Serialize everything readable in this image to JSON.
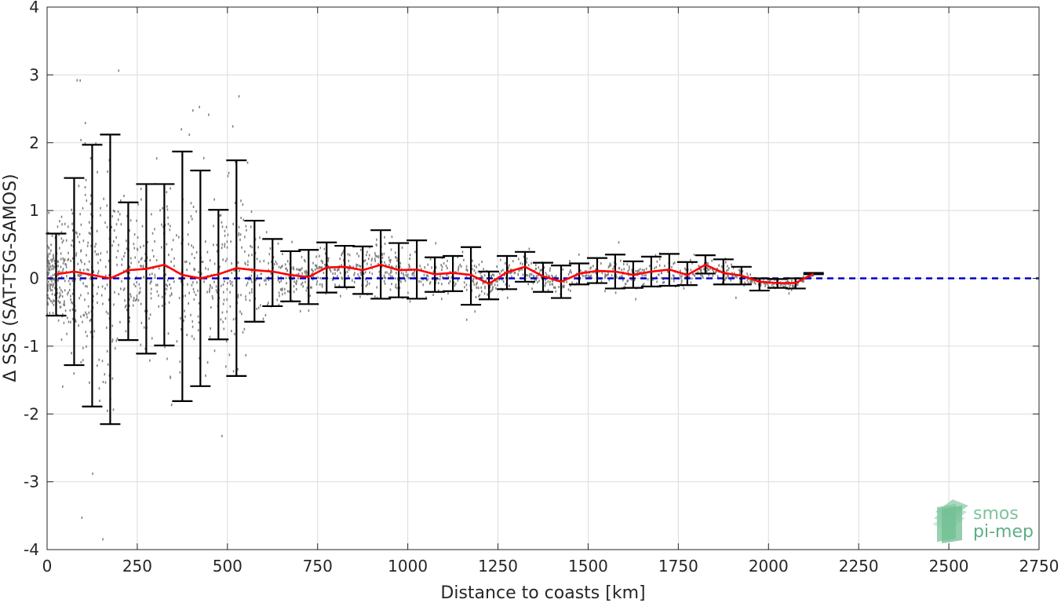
{
  "chart_data": {
    "type": "scatter",
    "xlabel": "Distance to coasts [km]",
    "ylabel": "Δ SSS (SAT-TSG-SAMOS)",
    "xlim": [
      0,
      2750
    ],
    "ylim": [
      -4,
      4
    ],
    "xticks": [
      "0",
      "250",
      "500",
      "750",
      "1000",
      "1250",
      "1500",
      "1750",
      "2000",
      "2250",
      "2500",
      "2750"
    ],
    "yticks": [
      "-4",
      "-3",
      "-2",
      "-1",
      "0",
      "1",
      "2",
      "3",
      "4"
    ],
    "grid": true,
    "colors": {
      "scatter": "#808080",
      "errorbar": "#000000",
      "mean_line": "#ff0000",
      "zero_line": "#0000cc"
    },
    "reference_line": {
      "y": 0,
      "style": "dashed"
    },
    "binned_stats": {
      "x": [
        25,
        75,
        125,
        175,
        225,
        275,
        325,
        375,
        425,
        475,
        525,
        575,
        625,
        675,
        725,
        775,
        825,
        875,
        925,
        975,
        1025,
        1075,
        1125,
        1175,
        1225,
        1275,
        1325,
        1375,
        1425,
        1475,
        1525,
        1575,
        1625,
        1675,
        1725,
        1775,
        1825,
        1875,
        1925,
        1975,
        2025,
        2075,
        2125
      ],
      "mean": [
        0.06,
        0.1,
        0.05,
        0.0,
        0.12,
        0.14,
        0.2,
        0.05,
        0.0,
        0.06,
        0.15,
        0.12,
        0.1,
        0.05,
        0.02,
        0.16,
        0.17,
        0.12,
        0.2,
        0.12,
        0.13,
        0.06,
        0.08,
        0.05,
        -0.08,
        0.09,
        0.17,
        0.03,
        -0.05,
        0.07,
        0.11,
        0.1,
        0.05,
        0.1,
        0.13,
        0.05,
        0.2,
        0.08,
        0.04,
        -0.05,
        -0.07,
        -0.07,
        0.07
      ],
      "upper": [
        0.66,
        1.48,
        1.97,
        2.12,
        1.12,
        1.39,
        1.39,
        1.87,
        1.59,
        1.01,
        1.74,
        0.85,
        0.58,
        0.4,
        0.42,
        0.53,
        0.48,
        0.47,
        0.71,
        0.52,
        0.56,
        0.31,
        0.33,
        0.46,
        0.1,
        0.33,
        0.39,
        0.23,
        0.19,
        0.22,
        0.3,
        0.35,
        0.25,
        0.32,
        0.36,
        0.24,
        0.34,
        0.28,
        0.17,
        0.0,
        -0.01,
        0.0,
        0.08
      ],
      "lower": [
        -0.55,
        -1.28,
        -1.89,
        -2.15,
        -0.91,
        -1.11,
        -0.99,
        -1.81,
        -1.59,
        -0.9,
        -1.44,
        -0.64,
        -0.41,
        -0.34,
        -0.38,
        -0.21,
        -0.13,
        -0.23,
        -0.3,
        -0.28,
        -0.3,
        -0.2,
        -0.19,
        -0.39,
        -0.31,
        -0.16,
        -0.05,
        -0.2,
        -0.29,
        -0.09,
        -0.07,
        -0.15,
        -0.14,
        -0.12,
        -0.11,
        -0.1,
        0.07,
        -0.09,
        -0.09,
        -0.18,
        -0.14,
        -0.15,
        0.06
      ]
    }
  },
  "logo": {
    "line1": "smos",
    "line2": "pi-mep"
  }
}
